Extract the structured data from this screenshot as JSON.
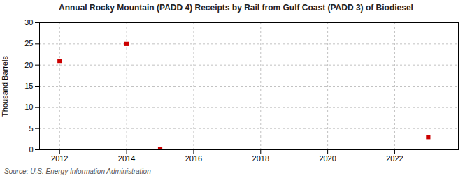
{
  "chart_data": {
    "type": "scatter",
    "title": "Annual Rocky Mountain (PADD 4) Receipts by Rail from Gulf Coast (PADD 3) of Biodiesel",
    "ylabel": "Thousand Barrels",
    "source": "Source: U.S. Energy Information Administration",
    "x": [
      2012,
      2014,
      2015,
      2023
    ],
    "values": [
      21,
      25,
      0.2,
      3
    ],
    "color": "#cc0000",
    "marker": "square",
    "xlim": [
      2011.4,
      2023.9
    ],
    "xticks": [
      2012,
      2014,
      2016,
      2018,
      2020,
      2022
    ],
    "ylim": [
      0,
      30
    ],
    "yticks": [
      0,
      5,
      10,
      15,
      20,
      25,
      30
    ],
    "grid": true
  }
}
